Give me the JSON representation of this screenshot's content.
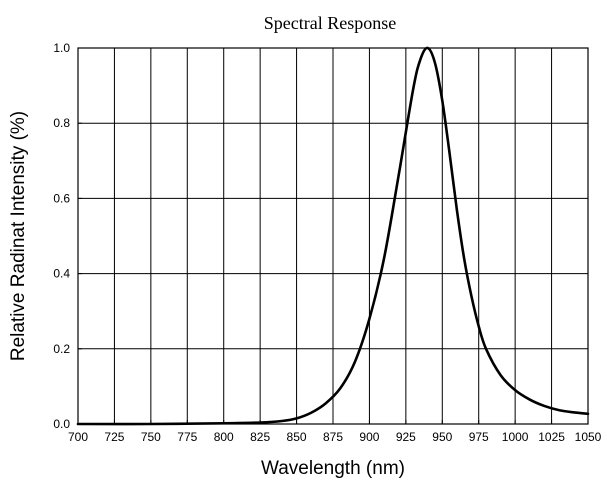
{
  "chart_data": {
    "type": "line",
    "title": "Spectral Response",
    "xlabel": "Wavelength (nm)",
    "ylabel": "Relative Radinat Intensity (%)",
    "xlim": [
      700,
      1050
    ],
    "ylim": [
      0.0,
      1.0
    ],
    "grid": true,
    "x_ticks": [
      "700",
      "725",
      "750",
      "775",
      "800",
      "825",
      "850",
      "875",
      "900",
      "925",
      "950",
      "975",
      "1000",
      "1025",
      "1050"
    ],
    "y_ticks": [
      "0.0",
      "0.2",
      "0.4",
      "0.6",
      "0.8",
      "1.0"
    ],
    "series": [
      {
        "x": [
          700,
          750,
          800,
          825,
          840,
          850,
          860,
          870,
          880,
          890,
          900,
          910,
          920,
          930,
          935,
          940,
          945,
          950,
          955,
          960,
          965,
          970,
          975,
          980,
          990,
          1000,
          1010,
          1020,
          1030,
          1040,
          1050
        ],
        "values": [
          0.0,
          0.0,
          0.002,
          0.004,
          0.008,
          0.015,
          0.03,
          0.055,
          0.095,
          0.165,
          0.28,
          0.44,
          0.66,
          0.89,
          0.97,
          1.0,
          0.96,
          0.86,
          0.72,
          0.57,
          0.44,
          0.34,
          0.26,
          0.2,
          0.13,
          0.09,
          0.065,
          0.048,
          0.037,
          0.031,
          0.027
        ]
      }
    ]
  }
}
